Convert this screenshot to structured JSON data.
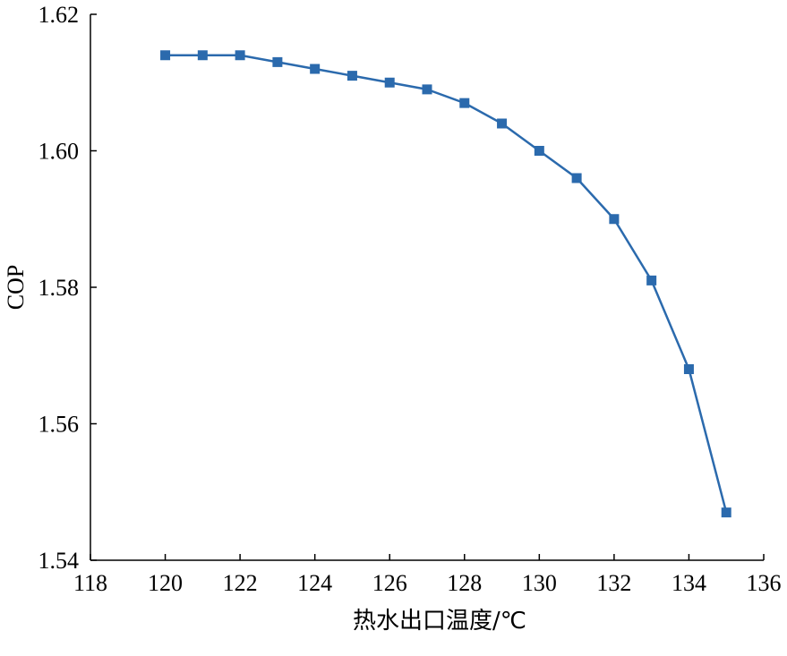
{
  "chart_data": {
    "type": "line",
    "xlabel": "热水出口温度/℃",
    "ylabel": "COP",
    "xlim": [
      118,
      136
    ],
    "ylim": [
      1.54,
      1.62
    ],
    "xticks": [
      "118",
      "120",
      "122",
      "124",
      "126",
      "128",
      "130",
      "132",
      "134",
      "136"
    ],
    "yticks": [
      "1.54",
      "1.56",
      "1.58",
      "1.60",
      "1.62"
    ],
    "grid": false,
    "series": [
      {
        "color": "#2b6aad",
        "marker": "square",
        "x": [
          120,
          121,
          122,
          123,
          124,
          125,
          126,
          127,
          128,
          129,
          130,
          131,
          132,
          133,
          134,
          135
        ],
        "y": [
          1.614,
          1.614,
          1.614,
          1.613,
          1.612,
          1.611,
          1.61,
          1.609,
          1.607,
          1.604,
          1.6,
          1.596,
          1.59,
          1.581,
          1.568,
          1.547
        ]
      }
    ]
  }
}
